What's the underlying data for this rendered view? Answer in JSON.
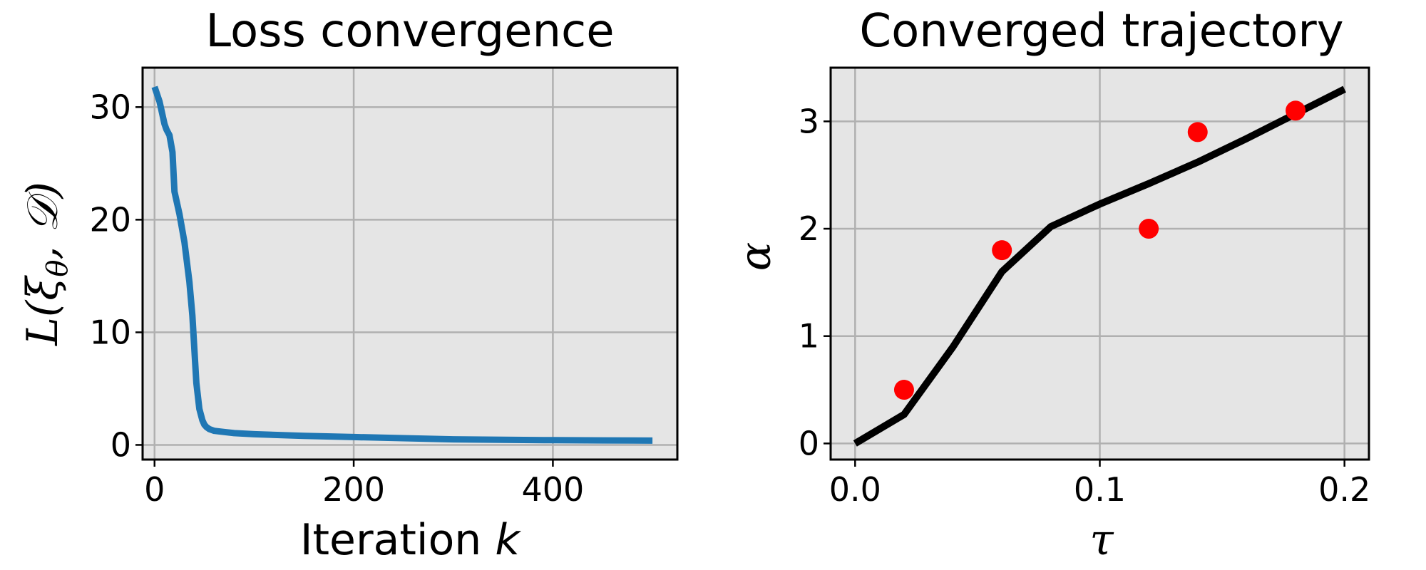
{
  "chart_data": [
    {
      "type": "line",
      "title": "Loss convergence",
      "xlabel": "Iteration k",
      "ylabel": "L(ξθ, 𝒟)",
      "xlim": [
        -12,
        525
      ],
      "ylim": [
        -1.3,
        33.5
      ],
      "xticks": [
        0,
        200,
        400
      ],
      "yticks": [
        0,
        10,
        20,
        30
      ],
      "grid": true,
      "color": "#1f77b4",
      "series": [
        {
          "x": [
            0,
            5,
            10,
            12,
            15,
            18,
            20,
            25,
            30,
            35,
            38,
            40,
            42,
            45,
            48,
            50,
            52,
            55,
            60,
            70,
            80,
            100,
            150,
            200,
            250,
            300,
            350,
            400,
            450,
            500
          ],
          "y": [
            31.8,
            30.5,
            28.5,
            28.0,
            27.5,
            26.0,
            22.5,
            20.5,
            18.0,
            14.5,
            11.5,
            8.5,
            5.5,
            3.2,
            2.2,
            1.8,
            1.6,
            1.4,
            1.25,
            1.15,
            1.05,
            0.95,
            0.8,
            0.7,
            0.6,
            0.5,
            0.45,
            0.42,
            0.4,
            0.38
          ]
        }
      ]
    },
    {
      "type": "line",
      "title": "Converged trajectory",
      "xlabel": "τ",
      "ylabel": "α",
      "xlim": [
        -0.01,
        0.21
      ],
      "ylim": [
        -0.15,
        3.5
      ],
      "xticks": [
        0.0,
        0.1,
        0.2
      ],
      "xticklabels": [
        "0.0",
        "0.1",
        "0.2"
      ],
      "yticks": [
        0,
        1,
        2,
        3
      ],
      "grid": true,
      "line_color": "#000000",
      "point_color": "#ff0000",
      "series": [
        {
          "x": [
            0.0,
            0.02,
            0.04,
            0.06,
            0.08,
            0.1,
            0.12,
            0.14,
            0.16,
            0.18,
            0.2
          ],
          "y": [
            0.0,
            0.27,
            0.9,
            1.6,
            2.02,
            2.23,
            2.42,
            2.62,
            2.84,
            3.07,
            3.3
          ]
        }
      ],
      "points": {
        "x": [
          0.02,
          0.06,
          0.12,
          0.14,
          0.18
        ],
        "y": [
          0.5,
          1.8,
          2.0,
          2.9,
          3.1
        ]
      }
    }
  ]
}
